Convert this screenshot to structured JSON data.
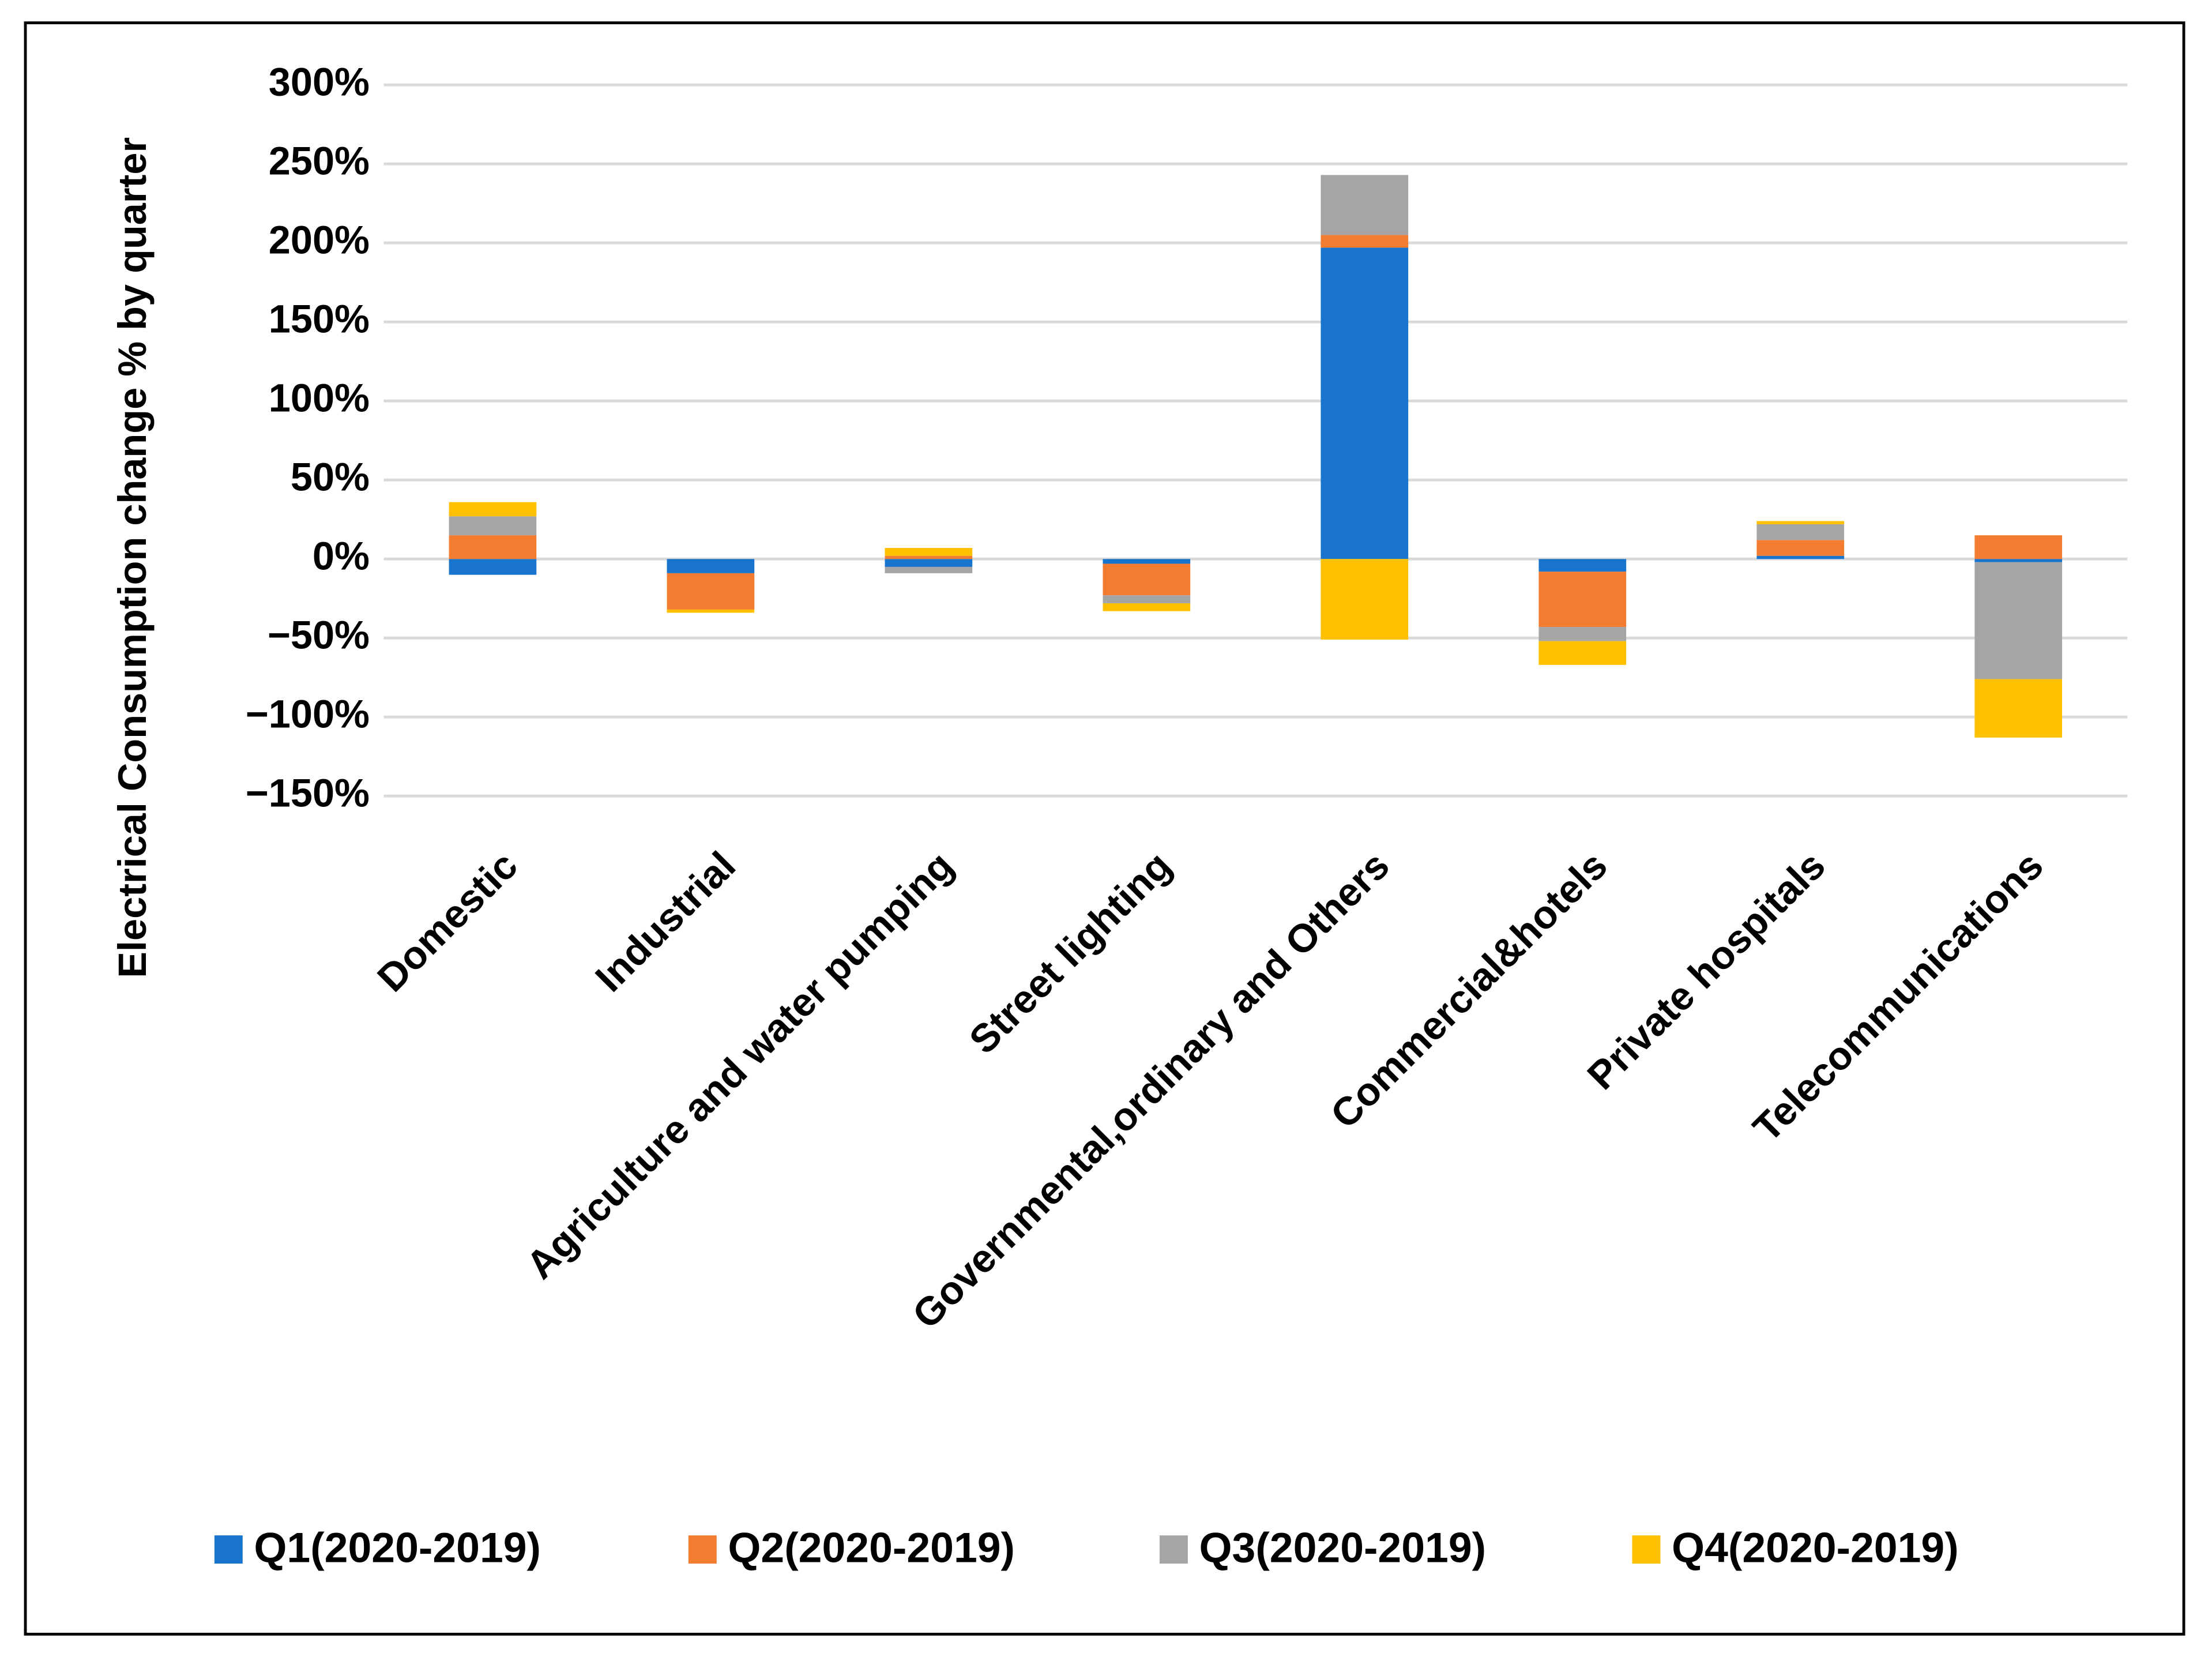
{
  "chart_data": {
    "type": "stacked-bar",
    "ylabel": "Electrical Consumption change % by quarter",
    "categories": [
      "Domestic",
      "Industrial",
      "Agriculture and water pumping",
      "Street lighting",
      "Governmental,ordinary and Others",
      "Commercial&hotels",
      "Private hospitals",
      "Telecommunications"
    ],
    "series": [
      {
        "name": "Q1(2020-2019)",
        "color": "#1874cd",
        "values": [
          -10,
          -9,
          -5,
          -3,
          197,
          -8,
          2,
          -2
        ]
      },
      {
        "name": "Q2(2020-2019)",
        "color": "#f47c30",
        "values": [
          15,
          -23,
          2,
          -20,
          8,
          -35,
          10,
          15
        ]
      },
      {
        "name": "Q3(2020-2019)",
        "color": "#a5a5a5",
        "values": [
          12,
          0,
          -4,
          -5,
          38,
          -9,
          10,
          -74
        ]
      },
      {
        "name": "Q4(2020-2019)",
        "color": "#ffc000",
        "values": [
          9,
          -2,
          5,
          -5,
          -51,
          -15,
          2,
          -37
        ]
      }
    ],
    "ylim": [
      -150,
      300
    ],
    "yticks": [
      {
        "value": -150,
        "label": "−150%"
      },
      {
        "value": -100,
        "label": "−100%"
      },
      {
        "value": -50,
        "label": "−50%"
      },
      {
        "value": 0,
        "label": "0%"
      },
      {
        "value": 50,
        "label": "50%"
      },
      {
        "value": 100,
        "label": "100%"
      },
      {
        "value": 150,
        "label": "150%"
      },
      {
        "value": 200,
        "label": "200%"
      },
      {
        "value": 250,
        "label": "250%"
      },
      {
        "value": 300,
        "label": "300%"
      }
    ],
    "grid": true,
    "legend": "bottom"
  }
}
